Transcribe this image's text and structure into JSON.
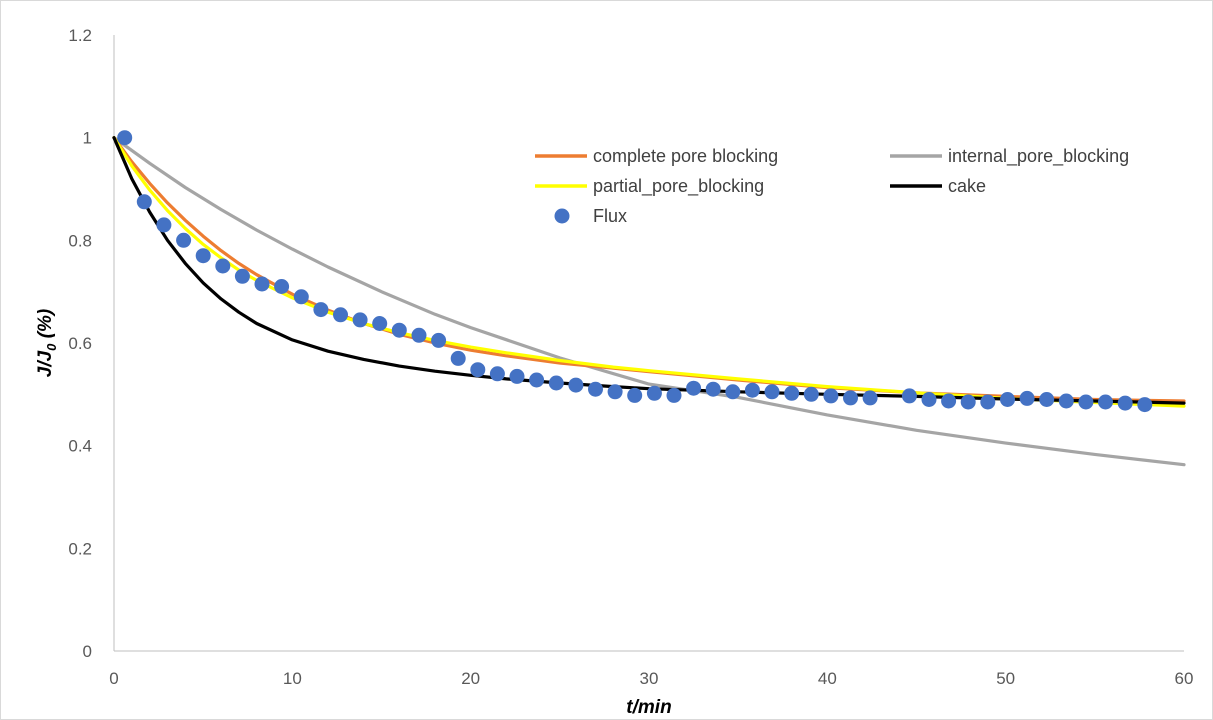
{
  "chart_data": {
    "type": "line",
    "xlabel": "t/min",
    "ylabel_main": "J/J",
    "ylabel_sub": "0",
    "ylabel_suffix": " (%)",
    "xlim": [
      0,
      60
    ],
    "ylim": [
      0,
      1.2
    ],
    "xticks": [
      0,
      10,
      20,
      30,
      40,
      50,
      60
    ],
    "yticks": [
      0,
      0.2,
      0.4,
      0.6,
      0.8,
      1,
      1.2
    ],
    "xtick_labels": [
      "0",
      "10",
      "20",
      "30",
      "40",
      "50",
      "60"
    ],
    "ytick_labels": [
      "0",
      "0.2",
      "0.4",
      "0.6",
      "0.8",
      "1",
      "1.2"
    ],
    "grid": false,
    "legend_position": "top-right",
    "series": [
      {
        "name": "complete pore blocking",
        "kind": "line",
        "color": "#ED7D31",
        "x": [
          0,
          1,
          2,
          3,
          4,
          5,
          6,
          7,
          8,
          10,
          12,
          14,
          16,
          18,
          20,
          22,
          25,
          28,
          30,
          35,
          40,
          45,
          50,
          55,
          60
        ],
        "y": [
          1.0,
          0.953,
          0.911,
          0.873,
          0.839,
          0.808,
          0.78,
          0.755,
          0.733,
          0.695,
          0.664,
          0.638,
          0.617,
          0.6,
          0.586,
          0.575,
          0.561,
          0.551,
          0.544,
          0.528,
          0.513,
          0.503,
          0.496,
          0.49,
          0.487
        ]
      },
      {
        "name": "internal_pore_blocking",
        "kind": "line",
        "color": "#A5A5A5",
        "x": [
          0,
          2,
          4,
          6,
          8,
          10,
          12,
          15,
          18,
          20,
          25,
          30,
          35,
          40,
          45,
          50,
          55,
          60
        ],
        "y": [
          1.0,
          0.95,
          0.903,
          0.86,
          0.82,
          0.783,
          0.748,
          0.7,
          0.656,
          0.63,
          0.571,
          0.52,
          0.494,
          0.46,
          0.43,
          0.405,
          0.383,
          0.363
        ]
      },
      {
        "name": "partial_pore_blocking",
        "kind": "line",
        "color": "#FFFF00",
        "x": [
          0,
          1,
          2,
          3,
          4,
          5,
          6,
          7,
          8,
          10,
          12,
          14,
          16,
          18,
          20,
          22,
          25,
          28,
          30,
          35,
          40,
          45,
          50,
          55,
          60
        ],
        "y": [
          1.0,
          0.945,
          0.898,
          0.858,
          0.823,
          0.792,
          0.766,
          0.742,
          0.722,
          0.688,
          0.66,
          0.638,
          0.62,
          0.605,
          0.592,
          0.581,
          0.566,
          0.553,
          0.546,
          0.53,
          0.515,
          0.503,
          0.492,
          0.484,
          0.477
        ]
      },
      {
        "name": "cake",
        "kind": "line",
        "color": "#000000",
        "x": [
          0,
          1,
          2,
          3,
          4,
          5,
          6,
          7,
          8,
          10,
          12,
          14,
          16,
          18,
          20,
          22,
          25,
          28,
          30,
          35,
          40,
          45,
          50,
          55,
          60
        ],
        "y": [
          1.0,
          0.92,
          0.855,
          0.8,
          0.755,
          0.717,
          0.686,
          0.66,
          0.638,
          0.606,
          0.584,
          0.568,
          0.555,
          0.545,
          0.537,
          0.53,
          0.522,
          0.515,
          0.511,
          0.505,
          0.5,
          0.496,
          0.491,
          0.487,
          0.483
        ]
      },
      {
        "name": "Flux",
        "kind": "scatter",
        "color": "#4472C4",
        "x": [
          0.6,
          1.7,
          2.8,
          3.9,
          5.0,
          6.1,
          7.2,
          8.3,
          9.4,
          10.5,
          11.6,
          12.7,
          13.8,
          14.9,
          16.0,
          17.1,
          18.2,
          19.3,
          20.4,
          21.5,
          22.6,
          23.7,
          24.8,
          25.9,
          27.0,
          28.1,
          29.2,
          30.3,
          31.4,
          32.5,
          33.6,
          34.7,
          35.8,
          36.9,
          38.0,
          39.1,
          40.2,
          41.3,
          42.4,
          44.6,
          45.7,
          46.8,
          47.9,
          49.0,
          50.1,
          51.2,
          52.3,
          53.4,
          54.5,
          55.6,
          56.7,
          57.8
        ],
        "y": [
          1.0,
          0.875,
          0.83,
          0.8,
          0.77,
          0.75,
          0.73,
          0.715,
          0.71,
          0.69,
          0.665,
          0.655,
          0.645,
          0.638,
          0.625,
          0.615,
          0.605,
          0.57,
          0.548,
          0.54,
          0.535,
          0.528,
          0.522,
          0.518,
          0.51,
          0.505,
          0.498,
          0.502,
          0.498,
          0.512,
          0.51,
          0.505,
          0.508,
          0.505,
          0.502,
          0.5,
          0.497,
          0.493,
          0.493,
          0.497,
          0.49,
          0.487,
          0.485,
          0.485,
          0.49,
          0.492,
          0.49,
          0.487,
          0.485,
          0.485,
          0.483,
          0.48
        ]
      }
    ]
  }
}
